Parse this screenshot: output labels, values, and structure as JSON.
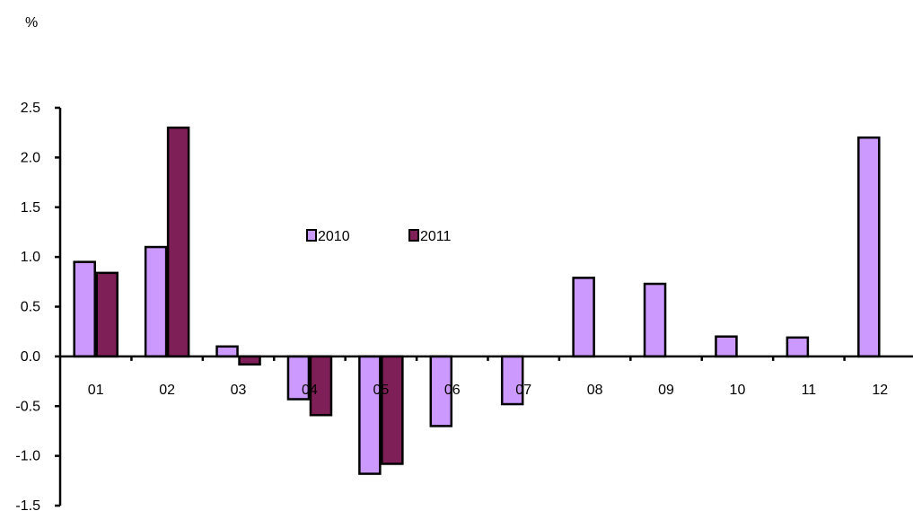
{
  "chart_data": {
    "type": "bar",
    "unit_label": "%",
    "categories": [
      "01",
      "02",
      "03",
      "04",
      "05",
      "06",
      "07",
      "08",
      "09",
      "10",
      "11",
      "12"
    ],
    "series": [
      {
        "name": "2010",
        "color": "#CC99FF",
        "values": [
          0.95,
          1.1,
          0.1,
          -0.43,
          -1.18,
          -0.7,
          -0.48,
          0.79,
          0.73,
          0.2,
          0.19,
          2.2
        ]
      },
      {
        "name": "2011",
        "color": "#7F1F57",
        "values": [
          0.84,
          2.3,
          -0.08,
          -0.59,
          -1.08,
          null,
          null,
          null,
          null,
          null,
          null,
          null
        ]
      }
    ],
    "ylim": [
      -1.5,
      2.5
    ],
    "yticks": [
      "-1.5",
      "-1.0",
      "-0.5",
      "0.0",
      "0.5",
      "1.0",
      "1.5",
      "2.0",
      "2.5"
    ],
    "grid": false,
    "legend_position": "center"
  }
}
